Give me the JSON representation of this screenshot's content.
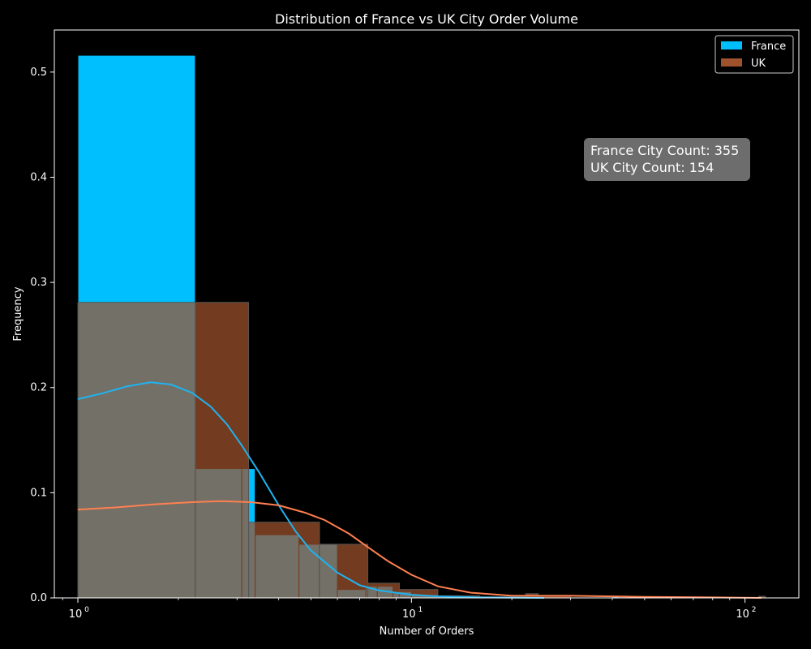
{
  "chart_data": {
    "type": "bar",
    "title": "Distribution of France vs UK City Order Volume",
    "xlabel": "Number of Orders",
    "ylabel": "Frequency",
    "xscale": "log",
    "xlim": [
      0.85,
      145
    ],
    "ylim": [
      0,
      0.54
    ],
    "yticks": [
      0.0,
      0.1,
      0.2,
      0.3,
      0.4,
      0.5
    ],
    "ytick_labels": [
      "0.0",
      "0.1",
      "0.2",
      "0.3",
      "0.4",
      "0.5"
    ],
    "xticks": [
      1,
      10,
      100
    ],
    "xtick_labels": [
      "10",
      "10",
      "10"
    ],
    "xtick_exponents": [
      "0",
      "1",
      "2"
    ],
    "grid": false,
    "legend_position": "top-right",
    "annotation": [
      "France City Count: 355",
      "UK City Count: 154"
    ],
    "series": [
      {
        "name": "France",
        "kind": "histogram",
        "color": "#00bfff",
        "bins": [
          {
            "x0": 1.0,
            "x1": 2.25,
            "value": 0.516
          },
          {
            "x0": 2.25,
            "x1": 3.1,
            "value": 0.123
          },
          {
            "x0": 3.1,
            "x1": 3.4,
            "value": 0.123
          },
          {
            "x0": 3.4,
            "x1": 4.6,
            "value": 0.06
          },
          {
            "x0": 4.6,
            "x1": 5.3,
            "value": 0.051
          },
          {
            "x0": 5.3,
            "x1": 6.0,
            "value": 0.051
          },
          {
            "x0": 6.0,
            "x1": 7.3,
            "value": 0.008
          },
          {
            "x0": 7.3,
            "x1": 7.9,
            "value": 0.011
          },
          {
            "x0": 7.9,
            "x1": 8.8,
            "value": 0.011
          },
          {
            "x0": 8.8,
            "x1": 10.0,
            "value": 0.006
          },
          {
            "x0": 10.0,
            "x1": 12.0,
            "value": 0.003
          },
          {
            "x0": 12.0,
            "x1": 16.0,
            "value": 0.001
          },
          {
            "x0": 40.0,
            "x1": 42.0,
            "value": 0.0015
          },
          {
            "x0": 64.0,
            "x1": 66.0,
            "value": 0.0015
          }
        ],
        "kde": {
          "x": [
            1.0,
            1.2,
            1.4,
            1.65,
            1.9,
            2.2,
            2.5,
            2.8,
            3.1,
            3.5,
            4.0,
            4.5,
            5.0,
            6.0,
            7.0,
            8.0,
            10.0,
            12.0,
            16.0,
            25.0
          ],
          "y": [
            0.189,
            0.195,
            0.201,
            0.205,
            0.203,
            0.195,
            0.182,
            0.165,
            0.145,
            0.119,
            0.088,
            0.063,
            0.045,
            0.024,
            0.012,
            0.007,
            0.003,
            0.0015,
            0.0005,
            0.0
          ]
        }
      },
      {
        "name": "UK",
        "kind": "histogram",
        "color": "#a0522d",
        "bins": [
          {
            "x0": 1.0,
            "x1": 2.25,
            "value": 0.281
          },
          {
            "x0": 2.25,
            "x1": 3.25,
            "value": 0.281
          },
          {
            "x0": 3.25,
            "x1": 5.3,
            "value": 0.072
          },
          {
            "x0": 5.3,
            "x1": 7.4,
            "value": 0.051
          },
          {
            "x0": 7.4,
            "x1": 9.2,
            "value": 0.014
          },
          {
            "x0": 9.2,
            "x1": 12.0,
            "value": 0.008
          },
          {
            "x0": 12.0,
            "x1": 16.0,
            "value": 0.002
          },
          {
            "x0": 16.0,
            "x1": 22.0,
            "value": 0.001
          },
          {
            "x0": 22.0,
            "x1": 24.0,
            "value": 0.004
          },
          {
            "x0": 24.0,
            "x1": 30.0,
            "value": 0.002
          },
          {
            "x0": 110.0,
            "x1": 115.0,
            "value": 0.0015
          }
        ],
        "kde": {
          "x": [
            1.0,
            1.3,
            1.7,
            2.2,
            2.7,
            3.3,
            4.0,
            4.8,
            5.5,
            6.5,
            7.5,
            8.5,
            10.0,
            12.0,
            15.0,
            20.0,
            30.0,
            50.0,
            80.0,
            112.0
          ],
          "y": [
            0.084,
            0.086,
            0.089,
            0.091,
            0.092,
            0.091,
            0.088,
            0.081,
            0.074,
            0.061,
            0.047,
            0.035,
            0.022,
            0.011,
            0.005,
            0.002,
            0.002,
            0.001,
            0.0005,
            0.0
          ]
        }
      }
    ]
  }
}
